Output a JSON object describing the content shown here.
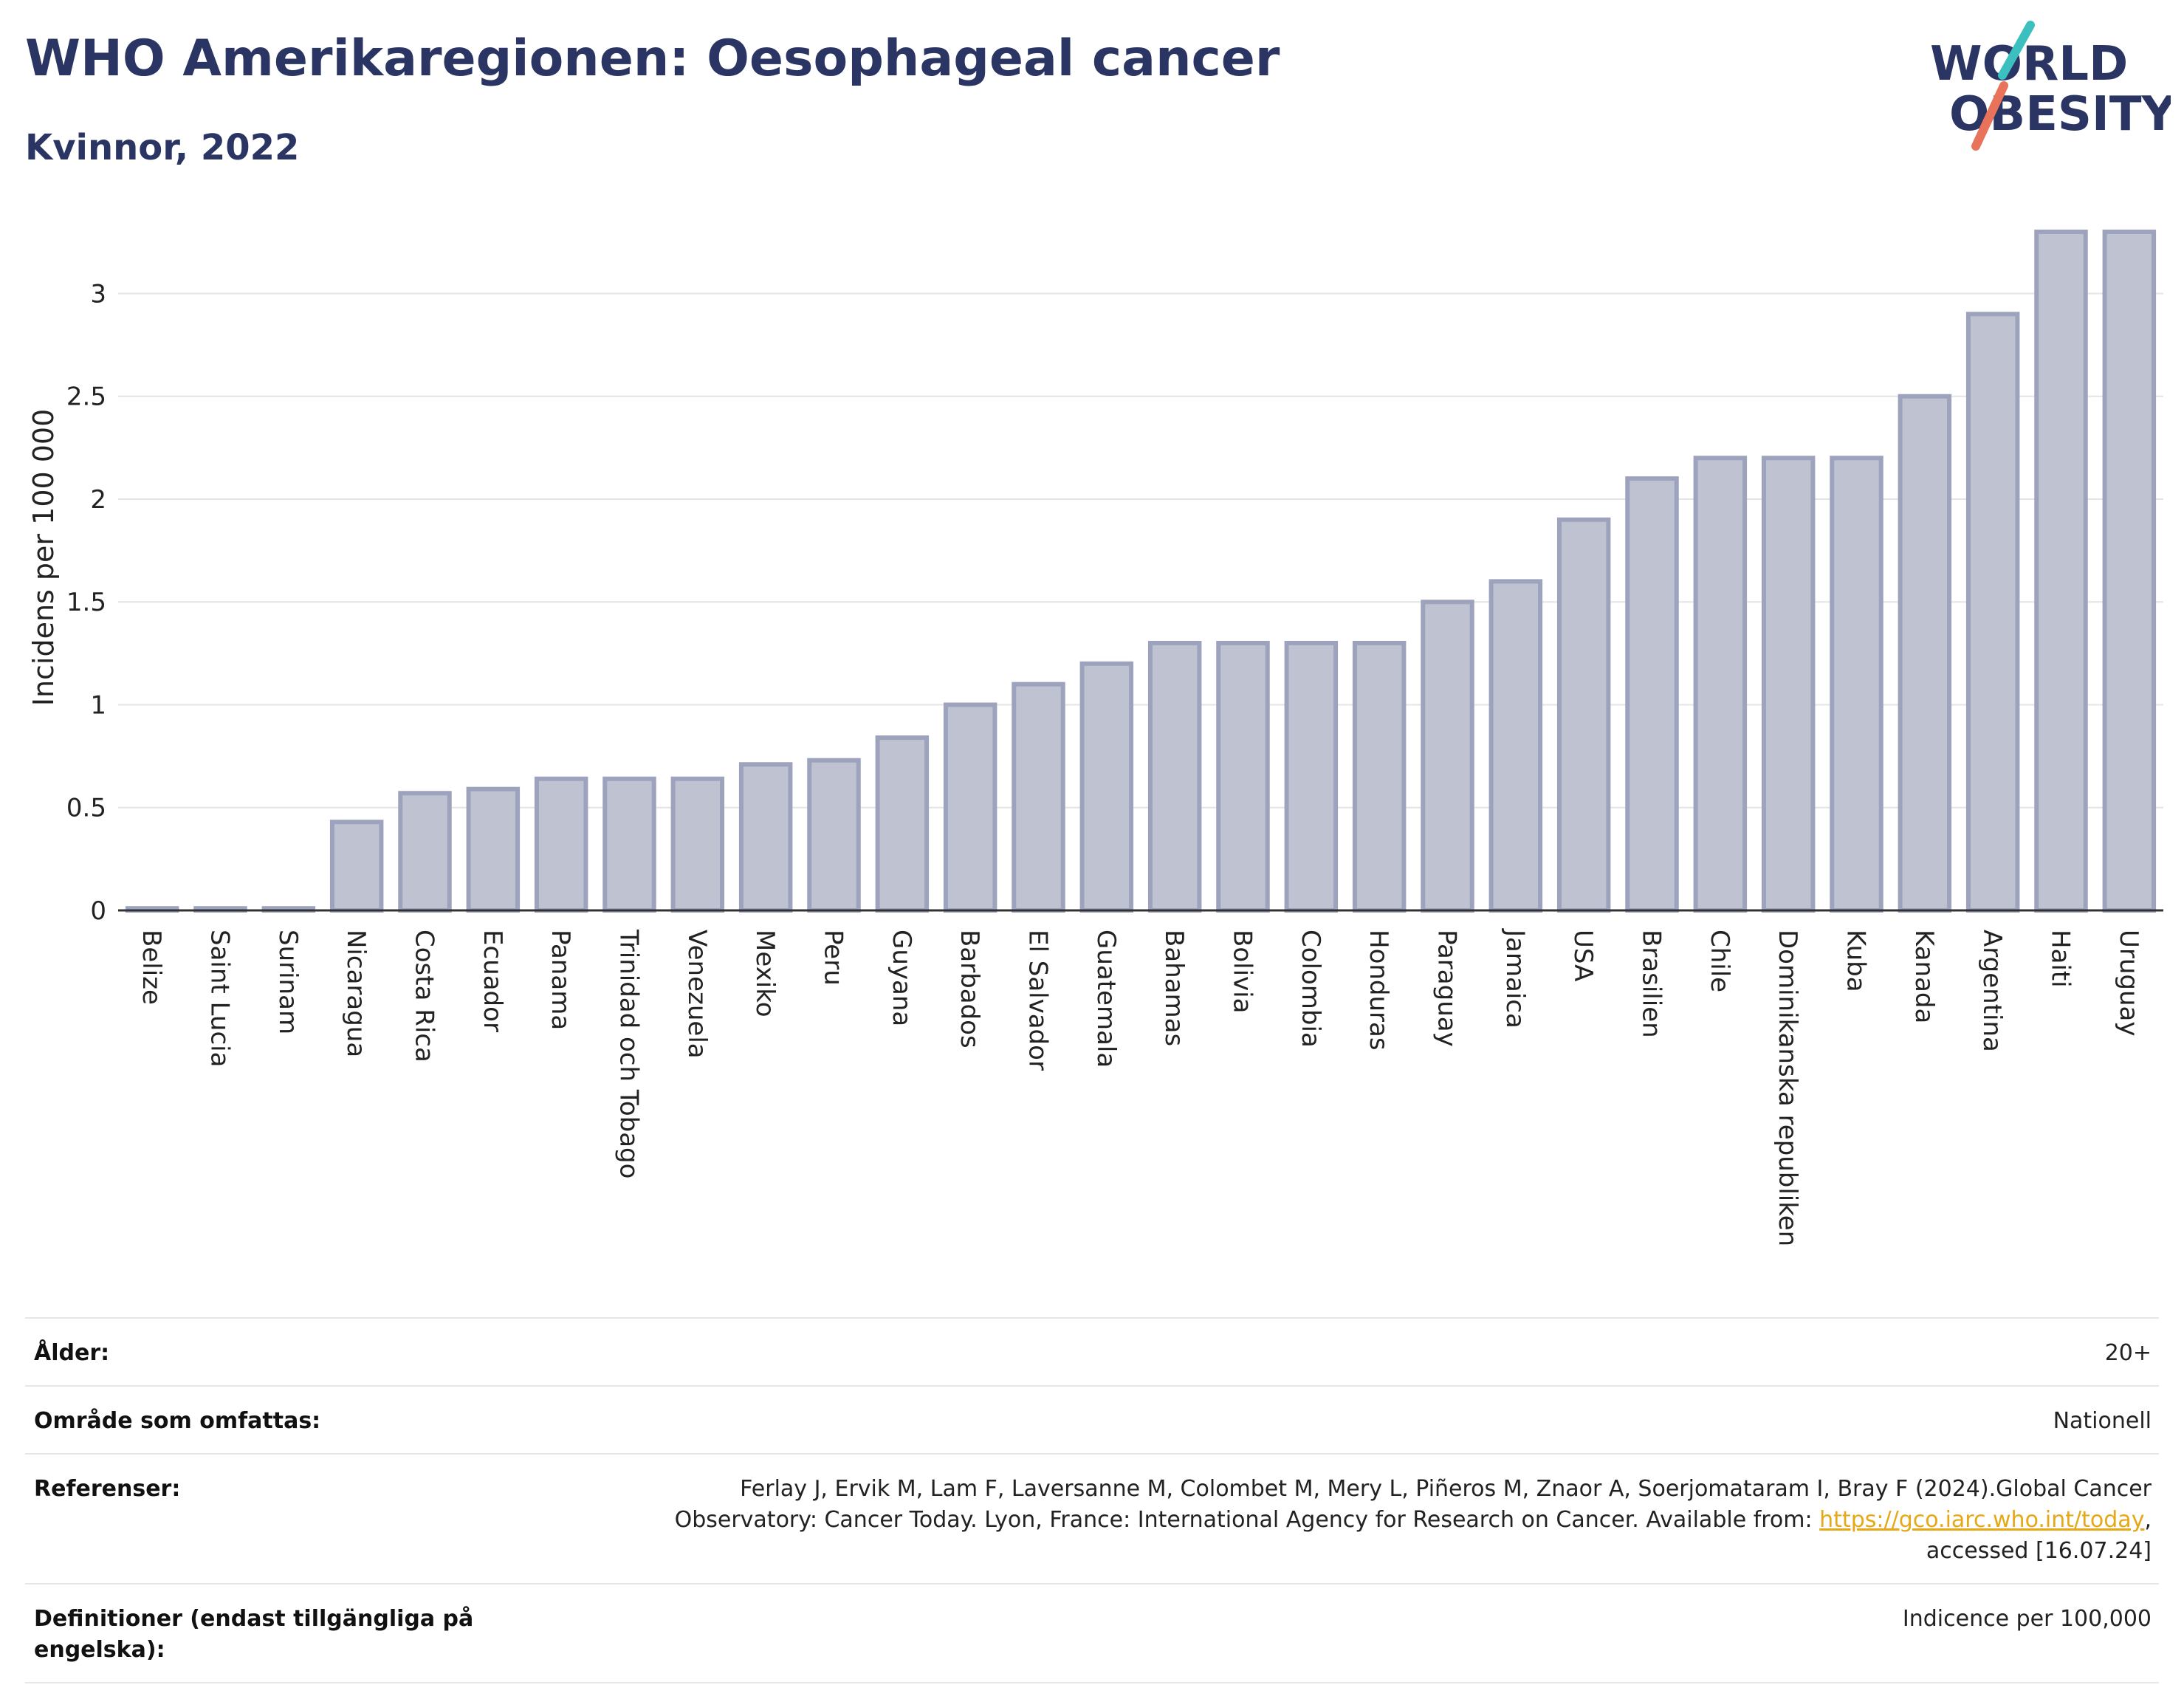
{
  "header": {
    "title": "WHO Amerikaregionen: Oesophageal cancer",
    "subtitle": "Kvinnor, 2022"
  },
  "logo": {
    "line1": "WORLD",
    "line2": "OBESITY",
    "colors": {
      "text": "#2b3563",
      "slash_teal": "#3bbfbf",
      "slash_coral": "#e8735a"
    }
  },
  "chart_data": {
    "type": "bar",
    "title": "",
    "xlabel": "",
    "ylabel": "Incidens per 100 000",
    "ylim": [
      0,
      3.35
    ],
    "yticks": [
      0,
      0.5,
      1,
      1.5,
      2,
      2.5,
      3
    ],
    "ytick_labels": [
      "0",
      "0.5",
      "1",
      "1.5",
      "2",
      "2.5",
      "3"
    ],
    "grid": true,
    "bar_fill": "#bfc2d0",
    "bar_stroke": "#9ea3bd",
    "categories": [
      "Belize",
      "Saint Lucia",
      "Surinam",
      "Nicaragua",
      "Costa Rica",
      "Ecuador",
      "Panama",
      "Trinidad och Tobago",
      "Venezuela",
      "Mexiko",
      "Peru",
      "Guyana",
      "Barbados",
      "El Salvador",
      "Guatemala",
      "Bahamas",
      "Bolivia",
      "Colombia",
      "Honduras",
      "Paraguay",
      "Jamaica",
      "USA",
      "Brasilien",
      "Chile",
      "Dominikanska republiken",
      "Kuba",
      "Kanada",
      "Argentina",
      "Haiti",
      "Uruguay"
    ],
    "values": [
      0.01,
      0.01,
      0.01,
      0.43,
      0.57,
      0.59,
      0.64,
      0.64,
      0.64,
      0.71,
      0.73,
      0.84,
      1.0,
      1.1,
      1.2,
      1.3,
      1.3,
      1.3,
      1.3,
      1.5,
      1.6,
      1.9,
      2.1,
      2.2,
      2.2,
      2.2,
      2.5,
      2.9,
      3.3,
      3.3
    ]
  },
  "info": {
    "age_label": "Ålder:",
    "age_value": "20+",
    "area_label": "Område som omfattas:",
    "area_value": "Nationell",
    "refs_label": "Referenser:",
    "refs_text_1": "Ferlay J, Ervik M, Lam F, Laversanne M, Colombet M, Mery L, Piñeros M, Znaor A, Soerjomataram I, Bray F (2024).Global Cancer",
    "refs_text_2": "Observatory: Cancer Today. Lyon, France: International Agency for Research on Cancer. Available from: ",
    "refs_link": "https://gco.iarc.who.int/today",
    "refs_text_3": ",",
    "refs_text_4": "accessed [16.07.24]",
    "defs_label": "Definitioner (endast tillgängliga på engelska):",
    "defs_value": "Indicence per 100,000"
  }
}
